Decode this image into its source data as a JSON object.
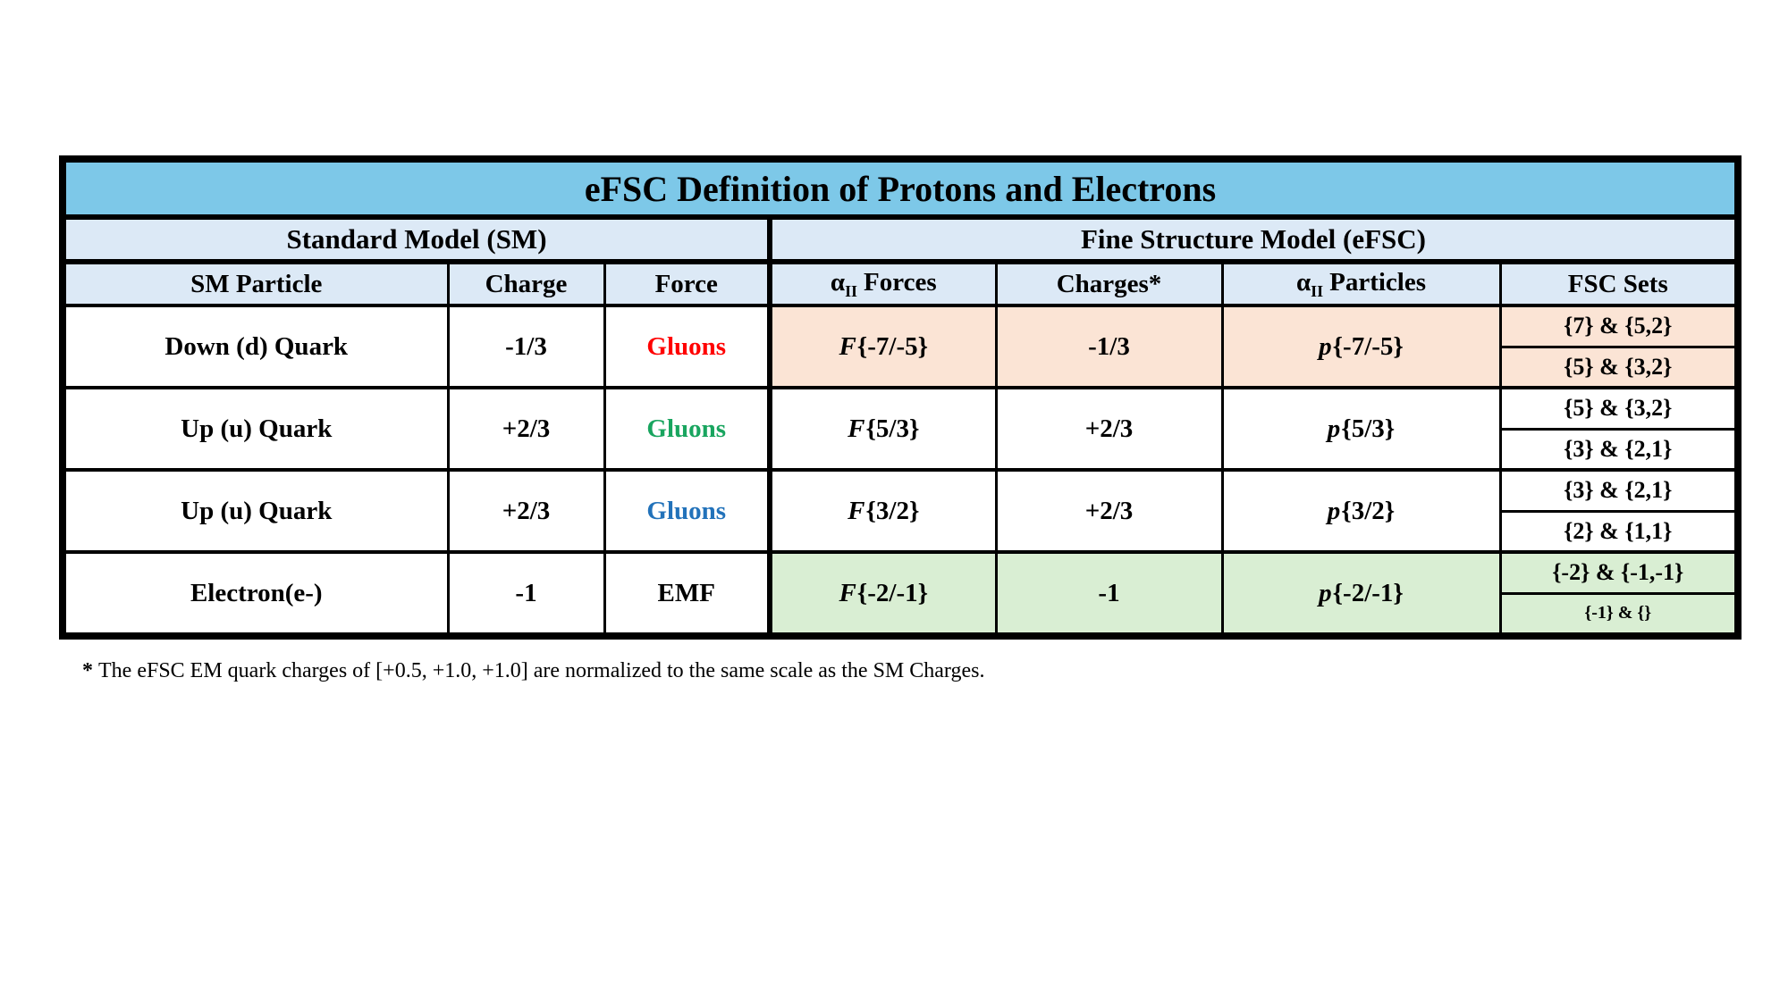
{
  "title": "eFSC Definition of Protons and Electrons",
  "section_headers": {
    "sm": "Standard Model (SM)",
    "efsc": "Fine Structure Model (eFSC)"
  },
  "column_headers": {
    "sm_particle": "SM Particle",
    "charge": "Charge",
    "force": "Force",
    "alpha": "α",
    "alpha_sub": "II",
    "forces_rest": "Forces",
    "charges_star": "Charges*",
    "particles_rest": "Particles",
    "fsc_sets": "FSC Sets"
  },
  "rows": [
    {
      "particle": "Down (d) Quark",
      "charge": "-1/3",
      "force": "Gluons",
      "force_color": "#FF0000",
      "f_letter": "F",
      "f_value": "{-7/-5}",
      "efsc_charge": "-1/3",
      "p_letter": "p",
      "p_value": "{-7/-5}",
      "sets": [
        "{7} & {5,2}",
        "{5} & {3,2}"
      ],
      "set2_small": false,
      "efsc_bg": "#FBE4D5"
    },
    {
      "particle": "Up (u) Quark",
      "charge": "+2/3",
      "force": "Gluons",
      "force_color": "#19A55F",
      "f_letter": "F",
      "f_value": "{5/3}",
      "efsc_charge": "+2/3",
      "p_letter": "p",
      "p_value": "{5/3}",
      "sets": [
        "{5} & {3,2}",
        "{3} & {2,1}"
      ],
      "set2_small": false,
      "efsc_bg": "#FFFFFF"
    },
    {
      "particle": "Up (u) Quark",
      "charge": "+2/3",
      "force": "Gluons",
      "force_color": "#2272BA",
      "f_letter": "F",
      "f_value": "{3/2}",
      "efsc_charge": "+2/3",
      "p_letter": "p",
      "p_value": "{3/2}",
      "sets": [
        "{3} & {2,1}",
        "{2} & {1,1}"
      ],
      "set2_small": false,
      "efsc_bg": "#FFFFFF"
    },
    {
      "particle": "Electron(e-)",
      "charge": "-1",
      "force": "EMF",
      "force_color": "#000000",
      "f_letter": "F",
      "f_value": "{-2/-1}",
      "efsc_charge": "-1",
      "p_letter": "p",
      "p_value": "{-2/-1}",
      "sets": [
        "{-2} & {-1,-1}",
        "{-1} & {}"
      ],
      "set2_small": true,
      "efsc_bg": "#D9EED3"
    }
  ],
  "footnote": {
    "marker": "*",
    "text": "The eFSC EM quark charges of [+0.5, +1.0, +1.0] are normalized to the same scale as the SM Charges."
  },
  "colors": {
    "title_bg": "#7DC8E8",
    "header_bg": "#DCE9F6",
    "quark_row1_bg": "#FBE4D5",
    "electron_row_bg": "#D9EED3",
    "border": "#000000",
    "gluons_red": "#FF0000",
    "gluons_green": "#19A55F",
    "gluons_blue": "#2272BA"
  }
}
